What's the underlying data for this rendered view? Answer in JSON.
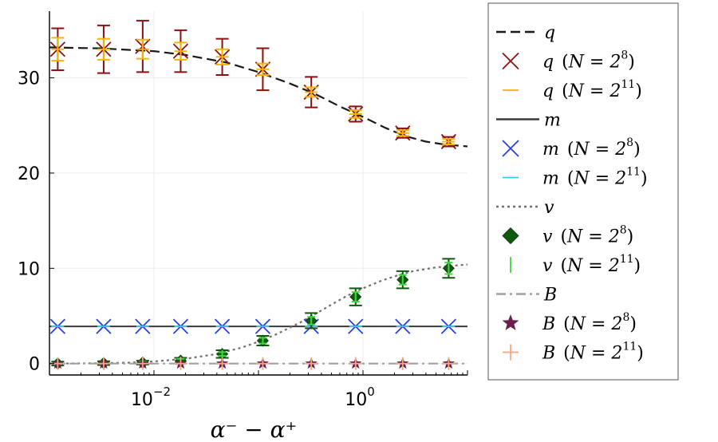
{
  "chart_data": {
    "type": "scatter",
    "x_scale": "log10",
    "xlabel": "α⁻ − α⁺",
    "ylabel": "",
    "xlim": [
      0.001,
      10
    ],
    "ylim": [
      -1.2,
      37
    ],
    "grid": true,
    "x_ticks": [
      {
        "value": 0.01,
        "base": "10",
        "exp": "−2"
      },
      {
        "value": 1,
        "base": "10",
        "exp": "0"
      }
    ],
    "y_ticks": [
      {
        "value": 0,
        "label": "0"
      },
      {
        "value": 10,
        "label": "10"
      },
      {
        "value": 20,
        "label": "20"
      },
      {
        "value": 30,
        "label": "30"
      }
    ],
    "x_points": [
      0.0012,
      0.0033,
      0.0078,
      0.018,
      0.045,
      0.11,
      0.32,
      0.85,
      2.4,
      6.6
    ],
    "curves": [
      {
        "name": "q",
        "style": "dashed",
        "color": "#1a1a1a",
        "x": [
          0.001,
          0.003,
          0.01,
          0.02,
          0.05,
          0.1,
          0.2,
          0.35,
          0.6,
          1,
          1.6,
          2.5,
          4,
          6,
          10
        ],
        "y": [
          33.2,
          33.1,
          32.8,
          32.4,
          31.6,
          30.6,
          29.4,
          28.3,
          27.0,
          25.9,
          24.8,
          23.9,
          23.3,
          23.0,
          22.8
        ]
      },
      {
        "name": "m",
        "style": "solid",
        "color": "#3a3a3a",
        "x": [
          0.001,
          10
        ],
        "y": [
          3.9,
          3.9
        ]
      },
      {
        "name": "v",
        "style": "dotted",
        "color": "#707070",
        "x": [
          0.001,
          0.003,
          0.006,
          0.01,
          0.02,
          0.04,
          0.07,
          0.1,
          0.15,
          0.25,
          0.35,
          0.5,
          0.7,
          1,
          1.5,
          2.2,
          3,
          5,
          10
        ],
        "y": [
          0.0,
          0.03,
          0.1,
          0.22,
          0.5,
          1.0,
          1.7,
          2.3,
          3.1,
          4.3,
          5.2,
          6.2,
          7.1,
          7.9,
          8.7,
          9.3,
          9.7,
          10.1,
          10.4
        ]
      },
      {
        "name": "B",
        "style": "dashdot",
        "color": "#a0a0a0",
        "x": [
          0.001,
          10
        ],
        "y": [
          0.0,
          0.0
        ]
      }
    ],
    "series": [
      {
        "name": "q (N=2^8)",
        "marker": "x",
        "color": "#8b1010",
        "errorbars": true,
        "values": [
          33.0,
          33.0,
          33.3,
          32.8,
          32.2,
          30.9,
          28.5,
          26.2,
          24.2,
          23.3
        ],
        "err": [
          2.2,
          2.5,
          2.7,
          2.2,
          1.9,
          2.2,
          1.6,
          0.8,
          0.5,
          0.5
        ]
      },
      {
        "name": "q (N=2^11)",
        "marker": "hline",
        "color": "#f4b400",
        "errorbars": true,
        "values": [
          33.0,
          33.0,
          33.0,
          32.8,
          32.2,
          30.9,
          28.5,
          26.2,
          24.2,
          23.3
        ],
        "err": [
          1.2,
          1.1,
          1.0,
          0.9,
          0.8,
          0.6,
          0.5,
          0.4,
          0.3,
          0.3
        ]
      },
      {
        "name": "m (N=2^8)",
        "marker": "x",
        "color": "#2b3fe0",
        "errorbars": false,
        "values": [
          3.9,
          3.9,
          3.9,
          3.9,
          3.9,
          3.9,
          3.9,
          3.9,
          3.9,
          3.9
        ]
      },
      {
        "name": "m (N=2^11)",
        "marker": "hline",
        "color": "#3ccce8",
        "errorbars": false,
        "values": [
          3.9,
          3.9,
          3.9,
          3.9,
          3.9,
          3.9,
          3.9,
          3.9,
          3.9,
          3.9
        ]
      },
      {
        "name": "v (N=2^8)",
        "marker": "diamond",
        "color": "#0f5a0f",
        "errorbars": true,
        "values": [
          0.0,
          0.05,
          0.1,
          0.3,
          1.0,
          2.4,
          4.5,
          7.0,
          8.8,
          10.0
        ],
        "err": [
          0.2,
          0.2,
          0.2,
          0.3,
          0.4,
          0.5,
          0.8,
          0.9,
          0.9,
          1.0
        ]
      },
      {
        "name": "v (N=2^11)",
        "marker": "vline",
        "color": "#3dd63d",
        "errorbars": true,
        "values": [
          0.0,
          0.05,
          0.1,
          0.3,
          1.0,
          2.4,
          4.5,
          7.0,
          8.8,
          10.0
        ],
        "err": [
          0.1,
          0.1,
          0.1,
          0.2,
          0.2,
          0.3,
          0.4,
          0.5,
          0.5,
          0.6
        ]
      },
      {
        "name": "B (N=2^8)",
        "marker": "star",
        "color": "#6b1e4e",
        "errorbars": false,
        "values": [
          0.0,
          0.0,
          0.0,
          0.0,
          0.0,
          0.0,
          0.0,
          0.0,
          0.0,
          0.0
        ]
      },
      {
        "name": "B (N=2^11)",
        "marker": "plus",
        "color": "#f4a582",
        "errorbars": false,
        "values": [
          0.0,
          0.0,
          0.0,
          0.0,
          0.0,
          0.0,
          0.0,
          0.0,
          0.0,
          0.0
        ]
      }
    ],
    "legend": {
      "placement": "right",
      "entries": [
        {
          "symbol": "q",
          "n_base": "",
          "n_exp": "",
          "marker": "dashed",
          "color": "#1a1a1a"
        },
        {
          "symbol": "q",
          "n_base": "N = 2",
          "n_exp": "8",
          "marker": "x",
          "color": "#8b1010"
        },
        {
          "symbol": "q",
          "n_base": "N = 2",
          "n_exp": "11",
          "marker": "hline",
          "color": "#f4b400"
        },
        {
          "symbol": "m",
          "n_base": "",
          "n_exp": "",
          "marker": "solid",
          "color": "#3a3a3a"
        },
        {
          "symbol": "m",
          "n_base": "N = 2",
          "n_exp": "8",
          "marker": "x",
          "color": "#2b3fe0"
        },
        {
          "symbol": "m",
          "n_base": "N = 2",
          "n_exp": "11",
          "marker": "hline",
          "color": "#3ccce8"
        },
        {
          "symbol": "v",
          "n_base": "",
          "n_exp": "",
          "marker": "dotted",
          "color": "#707070"
        },
        {
          "symbol": "v",
          "n_base": "N = 2",
          "n_exp": "8",
          "marker": "diamond",
          "color": "#0f5a0f"
        },
        {
          "symbol": "v",
          "n_base": "N = 2",
          "n_exp": "11",
          "marker": "vline",
          "color": "#3dd63d"
        },
        {
          "symbol": "B",
          "n_base": "",
          "n_exp": "",
          "marker": "dashdot",
          "color": "#a0a0a0"
        },
        {
          "symbol": "B",
          "n_base": "N = 2",
          "n_exp": "8",
          "marker": "star",
          "color": "#6b1e4e"
        },
        {
          "symbol": "B",
          "n_base": "N = 2",
          "n_exp": "11",
          "marker": "plus",
          "color": "#f4a582"
        }
      ]
    }
  }
}
